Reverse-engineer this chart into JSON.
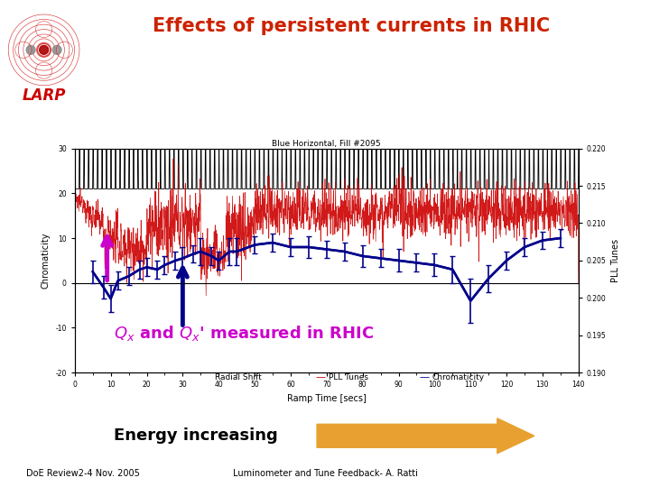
{
  "title": "Effects of persistent currents in RHIC",
  "title_color": "#cc2200",
  "background_color": "#ffffff",
  "subtitle_color": "#cc00cc",
  "energy_label": "Energy increasing",
  "footer_left": "DoE Review2-4 Nov. 2005",
  "footer_right": "Luminometer and Tune Feedback- A. Ratti",
  "larp_text": "LARP",
  "larp_color": "#cc0000",
  "plot_title": "Blue Horizontal, Fill #2095",
  "xlabel": "Ramp Time [secs]",
  "ylabel_left": "Chromaticity",
  "ylabel_right": "PLL Tunes",
  "xlim": [
    0,
    140
  ],
  "ylim_left": [
    -20,
    30
  ],
  "ylim_right": [
    0.19,
    0.22
  ],
  "xticks": [
    0,
    10,
    20,
    30,
    40,
    50,
    60,
    70,
    80,
    90,
    100,
    110,
    120,
    130,
    140
  ],
  "yticks_left": [
    -20,
    -10,
    0,
    10,
    20,
    30
  ],
  "yticks_right": [
    0.19,
    0.195,
    0.2,
    0.205,
    0.21,
    0.215,
    0.22
  ],
  "legend_items": [
    "Radial Shift",
    "PLL Tunes",
    "Chromaticity"
  ],
  "legend_colors": [
    "black",
    "#cc0000",
    "#00008B"
  ],
  "pll_tunes_color": "#cc0000",
  "chromaticity_color": "#00008B",
  "arrow1_color": "#cc00cc",
  "arrow2_color": "#00008B",
  "arrow_energy_color": "#e8a030",
  "plot_bg": "#ffffff",
  "chrom_t": [
    5,
    8,
    10,
    12,
    15,
    18,
    20,
    23,
    25,
    28,
    30,
    33,
    35,
    38,
    40,
    43,
    45,
    50,
    55,
    60,
    65,
    70,
    75,
    80,
    85,
    90,
    95,
    100,
    105,
    110,
    115,
    120,
    125,
    130,
    135
  ],
  "chrom_v": [
    2.5,
    -1,
    -3.5,
    0.5,
    1.5,
    3,
    3.5,
    3,
    4,
    5,
    5.5,
    6.5,
    7,
    6,
    5,
    7,
    7,
    8.5,
    9,
    8,
    8,
    7.5,
    7,
    6,
    5.5,
    5,
    4.5,
    4,
    3,
    -4,
    1,
    5,
    8,
    9.5,
    10
  ],
  "chrom_err": [
    2.5,
    2.5,
    3,
    2,
    2,
    2,
    2,
    2,
    2,
    2,
    2.5,
    2,
    3,
    2,
    2,
    3,
    3,
    2,
    2,
    2,
    2.5,
    2,
    2,
    2.5,
    2,
    2.5,
    2,
    2.5,
    3,
    5,
    3,
    2,
    2,
    2,
    2
  ]
}
